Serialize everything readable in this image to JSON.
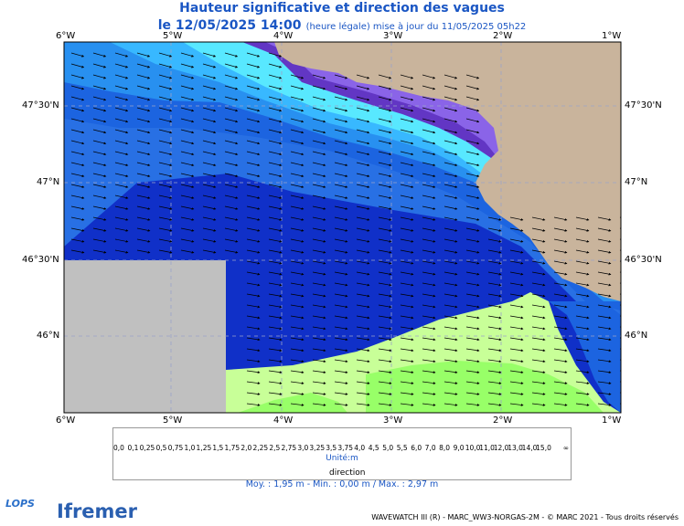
{
  "title": "Hauteur significative et direction des vagues",
  "date_line": "le 12/05/2025 14:00",
  "update_note": "(heure légale) mise à jour du 11/05/2025 05h22",
  "lon_labels": [
    "6°W",
    "5°W",
    "4°W",
    "3°W",
    "2°W",
    "1°W"
  ],
  "lat_labels": [
    "47°30'N",
    "47°N",
    "46°30'N",
    "46°N"
  ],
  "legend": {
    "ticks": [
      "0,0",
      "0,1",
      "0,25",
      "0,5",
      "0,75",
      "1,0",
      "1,25",
      "1,5",
      "1,75",
      "2,0",
      "2,25",
      "2,5",
      "2,75",
      "3,0",
      "3,25",
      "3,5",
      "3,75",
      "4,0",
      "4,5",
      "5,0",
      "5,5",
      "6,0",
      "7,0",
      "8,0",
      "9,0",
      "10,0",
      "11,0",
      "12,0",
      "13,0",
      "14,0",
      "15,0",
      "∞"
    ],
    "colors": [
      "#eedfcf",
      "#dcc8b4",
      "#c9b09a",
      "#b4a2ff",
      "#8a64e8",
      "#6236c4",
      "#b4fcff",
      "#58e8ff",
      "#38b8ff",
      "#2890f0",
      "#1c64e0",
      "#1030c8",
      "#c8ff98",
      "#98ff68",
      "#30dc30",
      "#38c858",
      "#58d858",
      "#90e000",
      "#ffff38",
      "#ffd000",
      "#ffa000",
      "#ff7000",
      "#ffb0b0",
      "#ff7070",
      "#e03030",
      "#a05020",
      "#803010",
      "#601000",
      "#a00000",
      "#ff00ff",
      "#900060"
    ],
    "unit_label": "Unité:m",
    "direction_label": "direction"
  },
  "stats": "Moy. : 1,95 m   -   Min. : 0,00 m / Max. : 2,97 m",
  "credit": "WAVEWATCH III (R) - MARC_WW3-NORGAS-2M - © MARC 2021 - Tous droits réservés",
  "logos": {
    "lops": "LOPS",
    "ifremer": "Ifremer"
  }
}
